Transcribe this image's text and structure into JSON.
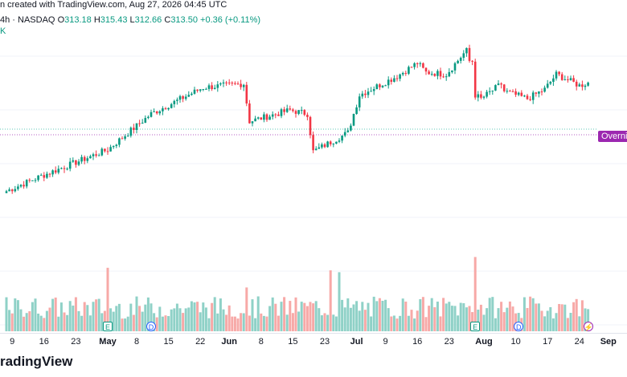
{
  "header": {
    "created_text": "n created with TradingView.com, Aug 27, 2026 04:45 UTC",
    "interval": "4h",
    "exchange": "NASDAQ",
    "o_label": "O",
    "o_value": "313.18",
    "h_label": "H",
    "h_value": "315.43",
    "l_label": "L",
    "l_value": "312.66",
    "c_label": "C",
    "c_value": "313.50",
    "change": "+0.36 (+0.11%)",
    "k_label": "K"
  },
  "badge": {
    "label": "Overnight"
  },
  "footer": {
    "brand": "radingView"
  },
  "colors": {
    "up": "#089981",
    "down": "#f23645",
    "up_vol": "#8fd1c7",
    "down_vol": "#f7a9a7",
    "grid": "#f0f3fa"
  },
  "x_axis": {
    "ticks": [
      {
        "label": "9",
        "idx": 2,
        "major": false
      },
      {
        "label": "16",
        "idx": 13,
        "major": false
      },
      {
        "label": "23",
        "idx": 24,
        "major": false
      },
      {
        "label": "May",
        "idx": 35,
        "major": true
      },
      {
        "label": "8",
        "idx": 45,
        "major": false
      },
      {
        "label": "15",
        "idx": 56,
        "major": false
      },
      {
        "label": "22",
        "idx": 67,
        "major": false
      },
      {
        "label": "Jun",
        "idx": 77,
        "major": true
      },
      {
        "label": "8",
        "idx": 88,
        "major": false
      },
      {
        "label": "15",
        "idx": 99,
        "major": false
      },
      {
        "label": "23",
        "idx": 110,
        "major": false
      },
      {
        "label": "Jul",
        "idx": 121,
        "major": true
      },
      {
        "label": "9",
        "idx": 131,
        "major": false
      },
      {
        "label": "16",
        "idx": 142,
        "major": false
      },
      {
        "label": "23",
        "idx": 153,
        "major": false
      },
      {
        "label": "Aug",
        "idx": 165,
        "major": true
      },
      {
        "label": "10",
        "idx": 176,
        "major": false
      },
      {
        "label": "17",
        "idx": 187,
        "major": false
      },
      {
        "label": "24",
        "idx": 198,
        "major": false
      },
      {
        "label": "Sep",
        "idx": 208,
        "major": true
      }
    ]
  },
  "events": [
    {
      "type": "e",
      "glyph": "E",
      "idx": 35
    },
    {
      "type": "d",
      "glyph": "D",
      "idx": 50
    },
    {
      "type": "e",
      "glyph": "E",
      "idx": 162
    },
    {
      "type": "d",
      "glyph": "D",
      "idx": 177
    },
    {
      "type": "s",
      "glyph": "⚡",
      "idx": 201
    }
  ],
  "chart_data": {
    "type": "candlestick",
    "interval": "4h",
    "y_range": [
      0,
      100
    ],
    "segments": [
      {
        "start": 0,
        "end": 12,
        "from": 22,
        "to": 30
      },
      {
        "start": 12,
        "end": 35,
        "from": 30,
        "to": 44
      },
      {
        "start": 35,
        "end": 50,
        "from": 44,
        "to": 63
      },
      {
        "start": 50,
        "end": 68,
        "from": 63,
        "to": 77
      },
      {
        "start": 68,
        "end": 82,
        "from": 77,
        "to": 79
      },
      {
        "start": 82,
        "end": 84,
        "from": 79,
        "to": 59
      },
      {
        "start": 84,
        "end": 98,
        "from": 59,
        "to": 65
      },
      {
        "start": 98,
        "end": 104,
        "from": 65,
        "to": 63
      },
      {
        "start": 104,
        "end": 106,
        "from": 63,
        "to": 43
      },
      {
        "start": 106,
        "end": 118,
        "from": 43,
        "to": 53
      },
      {
        "start": 118,
        "end": 122,
        "from": 53,
        "to": 73
      },
      {
        "start": 122,
        "end": 135,
        "from": 73,
        "to": 83
      },
      {
        "start": 135,
        "end": 142,
        "from": 83,
        "to": 90
      },
      {
        "start": 142,
        "end": 145,
        "from": 90,
        "to": 85
      },
      {
        "start": 145,
        "end": 152,
        "from": 85,
        "to": 84
      },
      {
        "start": 152,
        "end": 158,
        "from": 84,
        "to": 95
      },
      {
        "start": 158,
        "end": 160,
        "from": 95,
        "to": 98
      },
      {
        "start": 160,
        "end": 162,
        "from": 91,
        "to": 91
      },
      {
        "start": 162,
        "end": 164,
        "from": 73,
        "to": 71
      },
      {
        "start": 164,
        "end": 172,
        "from": 71,
        "to": 80
      },
      {
        "start": 172,
        "end": 180,
        "from": 75,
        "to": 71
      },
      {
        "start": 180,
        "end": 186,
        "from": 71,
        "to": 76
      },
      {
        "start": 186,
        "end": 190,
        "from": 76,
        "to": 84
      },
      {
        "start": 190,
        "end": 198,
        "from": 84,
        "to": 78
      },
      {
        "start": 198,
        "end": 202,
        "from": 78,
        "to": 80
      }
    ],
    "volume_spikes": [
      {
        "idx": 35,
        "value": 100
      },
      {
        "idx": 112,
        "value": 96
      },
      {
        "idx": 115,
        "value": 93
      },
      {
        "idx": 162,
        "value": 117
      },
      {
        "idx": 83,
        "value": 69
      }
    ]
  }
}
